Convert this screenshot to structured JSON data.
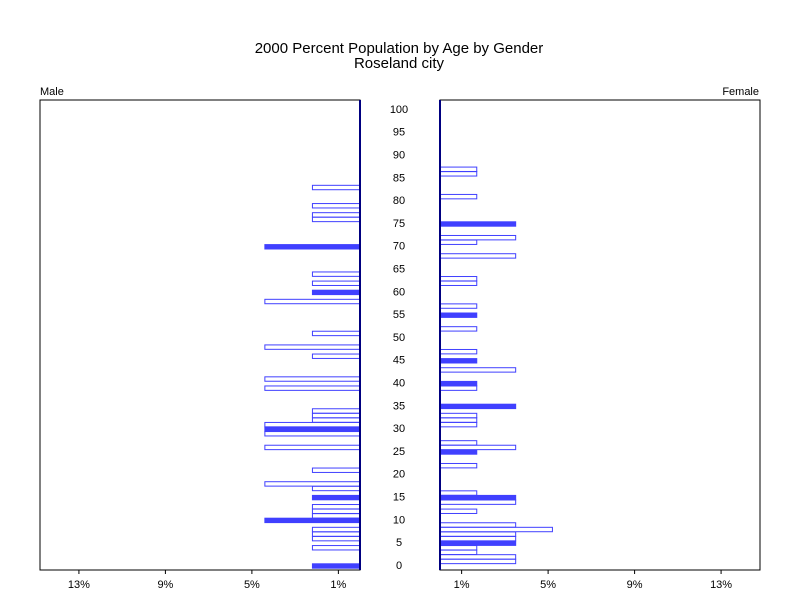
{
  "chart_data": {
    "type": "pyramid",
    "title": "2000 Percent Population by Age by Gender",
    "subtitle": "Roseland city",
    "categories": [
      0,
      null,
      null,
      null,
      null,
      5,
      null,
      null,
      null,
      null,
      10,
      null,
      null,
      null,
      null,
      15,
      null,
      null,
      null,
      null,
      20,
      null,
      null,
      null,
      null,
      25,
      null,
      null,
      null,
      null,
      30,
      null,
      null,
      null,
      null,
      35,
      null,
      null,
      null,
      null,
      40,
      null,
      null,
      null,
      null,
      45,
      null,
      null,
      null,
      null,
      50,
      null,
      null,
      null,
      null,
      55,
      null,
      null,
      null,
      null,
      60,
      null,
      null,
      null,
      null,
      65,
      null,
      null,
      null,
      null,
      70,
      null,
      null,
      null,
      null,
      75,
      null,
      null,
      null,
      null,
      80,
      null,
      null,
      null,
      null,
      85,
      null,
      null,
      null,
      null,
      90,
      null,
      null,
      null,
      null,
      95,
      null,
      null,
      null,
      null,
      100
    ],
    "series": [
      {
        "name": "Male",
        "color": "#4040ff",
        "values": [
          2.2,
          0,
          0,
          0,
          2.2,
          0,
          2.2,
          2.2,
          2.2,
          0,
          4.4,
          2.2,
          2.2,
          2.2,
          0,
          2.2,
          0,
          2.2,
          4.4,
          0,
          0,
          2.2,
          0,
          0,
          0,
          0,
          4.4,
          0,
          0,
          4.4,
          4.4,
          4.4,
          2.2,
          2.2,
          2.2,
          0,
          0,
          0,
          0,
          4.4,
          0,
          4.4,
          0,
          0,
          0,
          0,
          2.2,
          0,
          4.4,
          0,
          0,
          2.2,
          0,
          0,
          0,
          0,
          0,
          0,
          4.4,
          0,
          2.2,
          0,
          2.2,
          0,
          2.2,
          0,
          0,
          0,
          0,
          0,
          4.4,
          0,
          0,
          0,
          0,
          0,
          2.2,
          2.2,
          0,
          2.2,
          0,
          0,
          0,
          2.2,
          0,
          0,
          0,
          0,
          0,
          0,
          0,
          0,
          0,
          0,
          0,
          0,
          0,
          0,
          0,
          0,
          0
        ]
      },
      {
        "name": "Female",
        "color": "#4040ff",
        "values": [
          0,
          3.5,
          3.5,
          1.7,
          1.7,
          3.5,
          3.5,
          3.5,
          5.2,
          3.5,
          0,
          0,
          1.7,
          0,
          3.5,
          3.5,
          1.7,
          0,
          0,
          0,
          0,
          0,
          1.7,
          0,
          0,
          1.7,
          3.5,
          1.7,
          0,
          0,
          0,
          1.7,
          1.7,
          1.7,
          0,
          3.5,
          0,
          0,
          0,
          1.7,
          1.7,
          0,
          0,
          3.5,
          0,
          1.7,
          0,
          1.7,
          0,
          0,
          0,
          0,
          1.7,
          0,
          0,
          1.7,
          0,
          1.7,
          0,
          0,
          0,
          0,
          1.7,
          1.7,
          0,
          0,
          0,
          0,
          3.5,
          0,
          0,
          1.7,
          3.5,
          0,
          0,
          3.5,
          0,
          0,
          0,
          0,
          0,
          1.7,
          0,
          0,
          0,
          0,
          1.7,
          1.7,
          0,
          0,
          0,
          0,
          0,
          0,
          0,
          0,
          0,
          0,
          0,
          0,
          0
        ]
      }
    ],
    "xlim": [
      0,
      14.8
    ],
    "xticks": [
      {
        "value": 1,
        "label": "1%"
      },
      {
        "value": 5,
        "label": "5%"
      },
      {
        "value": 9,
        "label": "9%"
      },
      {
        "value": 13,
        "label": "13%"
      }
    ]
  }
}
